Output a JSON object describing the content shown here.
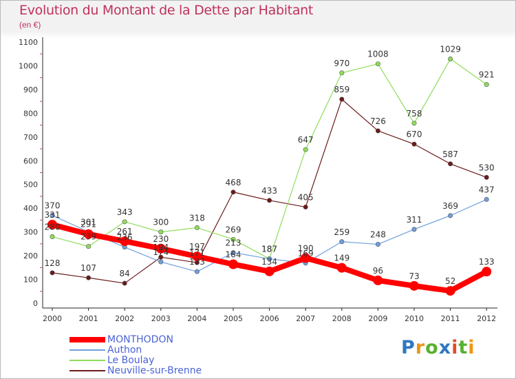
{
  "title": "Evolution du Montant de la Dette par Habitant",
  "subtitle": "(en €)",
  "brand_logo": "Proxiti",
  "chart_data": {
    "type": "line",
    "title": "Evolution du Montant de la Dette par Habitant",
    "subtitle": "(en €)",
    "x": [
      "2000",
      "2001",
      "2002",
      "2003",
      "2004",
      "2005",
      "2006",
      "2007",
      "2008",
      "2009",
      "2010",
      "2011",
      "2012"
    ],
    "ylim": [
      0,
      1100
    ],
    "yticks": [
      0,
      100,
      200,
      300,
      400,
      500,
      600,
      700,
      800,
      900,
      1000,
      1100
    ],
    "grid": false,
    "legend_position": "bottom-left",
    "series": [
      {
        "name": "Neuville-sur-Brenne",
        "color": "#6b1a1a",
        "values": [
          128,
          107,
          84,
          194,
          171,
          468,
          433,
          405,
          859,
          726,
          670,
          587,
          530
        ],
        "labels": [
          "128",
          "107",
          "84",
          "194",
          "171",
          "468",
          "433",
          "405",
          "859",
          "726",
          "670",
          "587",
          "530"
        ]
      },
      {
        "name": "Le Boulay",
        "color": "#8fdc5a",
        "values": [
          280,
          239,
          343,
          300,
          318,
          269,
          187,
          647,
          970,
          1008,
          758,
          1029,
          921
        ],
        "labels": [
          "280",
          "239",
          "343",
          "300",
          "318",
          "269",
          "187",
          "647",
          "970",
          "1008",
          "758",
          "1029",
          "921"
        ]
      },
      {
        "name": "Authon",
        "color": "#6f9fdc",
        "values": [
          370,
          301,
          236,
          174,
          133,
          213,
          187,
          169,
          259,
          248,
          311,
          369,
          437
        ],
        "labels": [
          "370",
          "301",
          "236",
          "174",
          "133",
          "213",
          "187",
          "169",
          "259",
          "248",
          "311",
          "369",
          "437"
        ]
      },
      {
        "name": "MONTHODON",
        "color": "#ff0000",
        "values": [
          331,
          291,
          261,
          230,
          197,
          164,
          134,
          190,
          149,
          96,
          73,
          52,
          133
        ],
        "labels": [
          "331",
          "291",
          "261",
          "230",
          "197",
          "164",
          "134",
          "190",
          "149",
          "96",
          "73",
          "52",
          "133"
        ]
      }
    ]
  }
}
